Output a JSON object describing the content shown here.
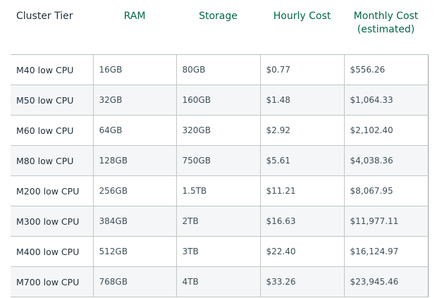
{
  "table": {
    "headers": [
      "Cluster Tier",
      "RAM",
      "Storage",
      "Hourly Cost",
      "Monthly Cost (estimated)"
    ],
    "rows": [
      [
        "M40 low CPU",
        "16GB",
        "80GB",
        "$0.77",
        "$556.26"
      ],
      [
        "M50 low CPU",
        "32GB",
        "160GB",
        "$1.48",
        "$1,064.33"
      ],
      [
        "M60 low CPU",
        "64GB",
        "320GB",
        "$2.92",
        "$2,102.40"
      ],
      [
        "M80 low CPU",
        "128GB",
        "750GB",
        "$5.61",
        "$4,038.36"
      ],
      [
        "M200 low CPU",
        "256GB",
        "1.5TB",
        "$11.21",
        "$8,067.95"
      ],
      [
        "M300 low CPU",
        "384GB",
        "2TB",
        "$16.63",
        "$11,977.11"
      ],
      [
        "M400 low CPU",
        "512GB",
        "3TB",
        "$22.40",
        "$16,124.97"
      ],
      [
        "M700 low CPU",
        "768GB",
        "4TB",
        "$33.26",
        "$23,945.46"
      ]
    ]
  }
}
